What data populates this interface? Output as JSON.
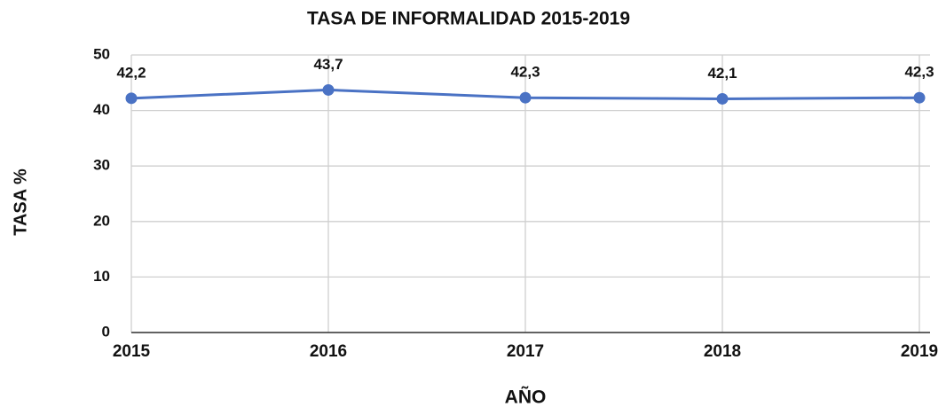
{
  "chart_data": {
    "type": "line",
    "title": "TASA DE INFORMALIDAD 2015-2019",
    "x_label": "AÑO",
    "y_label": "TASA %",
    "categories": [
      "2015",
      "2016",
      "2017",
      "2018",
      "2019"
    ],
    "series": [
      {
        "name": "TASA",
        "color": "#4a72c4",
        "values": [
          42.2,
          43.7,
          42.3,
          42.1,
          42.3
        ],
        "value_labels": [
          "42,2",
          "43,7",
          "42,3",
          "42,1",
          "42,3"
        ]
      }
    ],
    "ylim": [
      0,
      50
    ],
    "yticks": [
      0,
      10,
      20,
      30,
      40,
      50
    ],
    "grid": true
  }
}
